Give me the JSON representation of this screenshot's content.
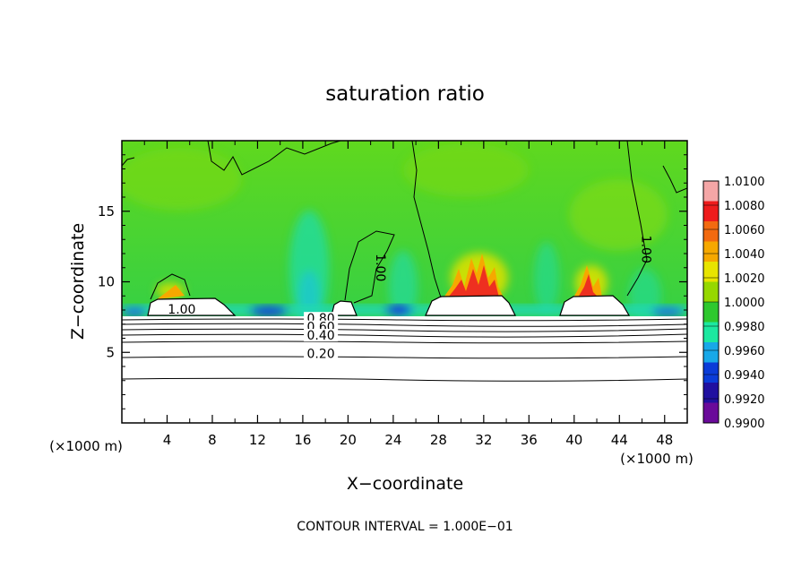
{
  "chart_data": {
    "type": "heatmap",
    "title": "saturation ratio",
    "xlabel": "X−coordinate",
    "ylabel": "Z−coordinate",
    "x_unit_left": "(×1000 m)",
    "x_unit_right": "(×1000 m)",
    "xlim": [
      0,
      50
    ],
    "ylim": [
      0,
      20
    ],
    "x_ticks": [
      4,
      8,
      12,
      16,
      20,
      24,
      28,
      32,
      36,
      40,
      44,
      48
    ],
    "y_ticks": [
      5,
      10,
      15
    ],
    "footer": "CONTOUR INTERVAL = 1.000E−01",
    "colorbar": {
      "labels": [
        "1.0100",
        "1.0080",
        "1.0060",
        "1.0040",
        "1.0020",
        "1.0000",
        "0.9980",
        "0.9960",
        "0.9940",
        "0.9920",
        "0.9900"
      ],
      "colors": [
        "#f4a6a6",
        "#ee1c1c",
        "#f26a10",
        "#f6a800",
        "#e8e400",
        "#96d800",
        "#2ec82e",
        "#1ce8a0",
        "#18a8e8",
        "#0a3cd8",
        "#2010a0",
        "#6a0a9a"
      ]
    },
    "contour_labels": [
      {
        "text": "1.00",
        "x": 5.3,
        "z": 7.75,
        "rot": 0
      },
      {
        "text": "1.00",
        "x": 22.5,
        "z": 11.0,
        "rot": 90
      },
      {
        "text": "1.00",
        "x": 46.0,
        "z": 12.3,
        "rot": 90
      },
      {
        "text": "0.80",
        "x": 17.6,
        "z": 7.1,
        "rot": 0
      },
      {
        "text": "0.60",
        "x": 17.6,
        "z": 6.5,
        "rot": 0
      },
      {
        "text": "0.40",
        "x": 17.6,
        "z": 5.9,
        "rot": 0
      },
      {
        "text": "0.20",
        "x": 17.6,
        "z": 4.6,
        "rot": 0
      }
    ]
  }
}
